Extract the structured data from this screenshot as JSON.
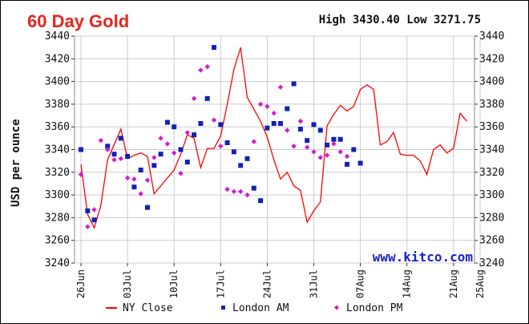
{
  "header": {
    "title": "60 Day Gold",
    "high_low": "High 3430.40 Low 3271.75"
  },
  "watermark": "www.kitco.com",
  "colors": {
    "title": "#e8241c",
    "ny_close": "#ff0000",
    "london_am": "#1022b8",
    "london_pm": "#d21bd2",
    "grid": "#cccccc",
    "watermark": "#1a22c8"
  },
  "chart_data": {
    "type": "line",
    "title": "60 Day Gold",
    "xlabel": "",
    "ylabel": "USD per ounce",
    "ylim": [
      3240,
      3440
    ],
    "y_ticks": [
      3240,
      3260,
      3280,
      3300,
      3320,
      3340,
      3360,
      3380,
      3400,
      3420,
      3440
    ],
    "x_ticks": [
      {
        "label": "26Jun",
        "day": 0
      },
      {
        "label": "03Jul",
        "day": 7
      },
      {
        "label": "10Jul",
        "day": 14
      },
      {
        "label": "17Jul",
        "day": 21
      },
      {
        "label": "24Jul",
        "day": 28
      },
      {
        "label": "31Jul",
        "day": 35
      },
      {
        "label": "07Aug",
        "day": 42
      },
      {
        "label": "14Aug",
        "day": 49
      },
      {
        "label": "21Aug",
        "day": 56
      },
      {
        "label": "25Aug",
        "day": 60
      }
    ],
    "xlim": [
      0,
      60
    ],
    "grid": true,
    "legend_position": "bottom",
    "series": [
      {
        "name": "NY Close",
        "kind": "line",
        "points": [
          [
            0,
            3327
          ],
          [
            1,
            3283
          ],
          [
            2,
            3271
          ],
          [
            3,
            3291
          ],
          [
            4,
            3331
          ],
          [
            6,
            3358
          ],
          [
            7,
            3332
          ],
          [
            8,
            3335
          ],
          [
            9,
            3337
          ],
          [
            10,
            3334
          ],
          [
            11,
            3301
          ],
          [
            14,
            3322
          ],
          [
            15,
            3336
          ],
          [
            16,
            3353
          ],
          [
            17,
            3350
          ],
          [
            18,
            3324
          ],
          [
            19,
            3341
          ],
          [
            20,
            3341
          ],
          [
            21,
            3352
          ],
          [
            22,
            3380
          ],
          [
            23,
            3411
          ],
          [
            24,
            3430
          ],
          [
            25,
            3386
          ],
          [
            27,
            3365
          ],
          [
            28,
            3351
          ],
          [
            29,
            3331
          ],
          [
            30,
            3314
          ],
          [
            31,
            3320
          ],
          [
            32,
            3308
          ],
          [
            33,
            3304
          ],
          [
            34,
            3276
          ],
          [
            35,
            3286
          ],
          [
            36,
            3294
          ],
          [
            37,
            3361
          ],
          [
            38,
            3371
          ],
          [
            39,
            3379
          ],
          [
            40,
            3374
          ],
          [
            41,
            3378
          ],
          [
            42,
            3393
          ],
          [
            43,
            3397
          ],
          [
            44,
            3393
          ],
          [
            45,
            3344
          ],
          [
            46,
            3347
          ],
          [
            47,
            3355
          ],
          [
            48,
            3336
          ],
          [
            49,
            3335
          ],
          [
            50,
            3335
          ],
          [
            51,
            3330
          ],
          [
            52,
            3318
          ],
          [
            53,
            3340
          ],
          [
            54,
            3344
          ],
          [
            55,
            3337
          ],
          [
            56,
            3341
          ],
          [
            57,
            3372
          ],
          [
            58,
            3365
          ]
        ]
      },
      {
        "name": "London AM",
        "kind": "marker",
        "points": [
          [
            0,
            3340
          ],
          [
            1,
            3286
          ],
          [
            2,
            3278
          ],
          [
            4,
            3343
          ],
          [
            5,
            3336
          ],
          [
            6,
            3350
          ],
          [
            7,
            3334
          ],
          [
            8,
            3307
          ],
          [
            9,
            3322
          ],
          [
            10,
            3289
          ],
          [
            11,
            3326
          ],
          [
            12,
            3336
          ],
          [
            13,
            3364
          ],
          [
            14,
            3360
          ],
          [
            15,
            3340
          ],
          [
            16,
            3329
          ],
          [
            17,
            3353
          ],
          [
            18,
            3363
          ],
          [
            19,
            3385
          ],
          [
            20,
            3430
          ],
          [
            21,
            3362
          ],
          [
            22,
            3346
          ],
          [
            23,
            3338
          ],
          [
            24,
            3326
          ],
          [
            25,
            3332
          ],
          [
            26,
            3306
          ],
          [
            27,
            3295
          ],
          [
            28,
            3359
          ],
          [
            29,
            3363
          ],
          [
            30,
            3363
          ],
          [
            31,
            3376
          ],
          [
            32,
            3398
          ],
          [
            33,
            3358
          ],
          [
            34,
            3348
          ],
          [
            35,
            3362
          ],
          [
            36,
            3357
          ],
          [
            37,
            3344
          ],
          [
            38,
            3349
          ],
          [
            39,
            3349
          ],
          [
            40,
            3327
          ],
          [
            41,
            3340
          ],
          [
            42,
            3328
          ]
        ]
      },
      {
        "name": "London PM",
        "kind": "marker",
        "points": [
          [
            0,
            3318
          ],
          [
            1,
            3272
          ],
          [
            2,
            3287
          ],
          [
            3,
            3348
          ],
          [
            4,
            3340
          ],
          [
            5,
            3331
          ],
          [
            6,
            3332
          ],
          [
            7,
            3315
          ],
          [
            8,
            3314
          ],
          [
            9,
            3301
          ],
          [
            10,
            3313
          ],
          [
            11,
            3333
          ],
          [
            12,
            3350
          ],
          [
            13,
            3345
          ],
          [
            14,
            3337
          ],
          [
            15,
            3319
          ],
          [
            16,
            3355
          ],
          [
            17,
            3385
          ],
          [
            18,
            3410
          ],
          [
            19,
            3413
          ],
          [
            20,
            3366
          ],
          [
            21,
            3343
          ],
          [
            22,
            3305
          ],
          [
            23,
            3303
          ],
          [
            24,
            3303
          ],
          [
            25,
            3300
          ],
          [
            26,
            3347
          ],
          [
            27,
            3380
          ],
          [
            28,
            3378
          ],
          [
            29,
            3372
          ],
          [
            30,
            3395
          ],
          [
            31,
            3357
          ],
          [
            32,
            3343
          ],
          [
            33,
            3365
          ],
          [
            34,
            3342
          ],
          [
            35,
            3338
          ],
          [
            36,
            3333
          ],
          [
            37,
            3335
          ],
          [
            38,
            3345
          ],
          [
            39,
            3338
          ],
          [
            40,
            3334
          ]
        ]
      }
    ]
  }
}
